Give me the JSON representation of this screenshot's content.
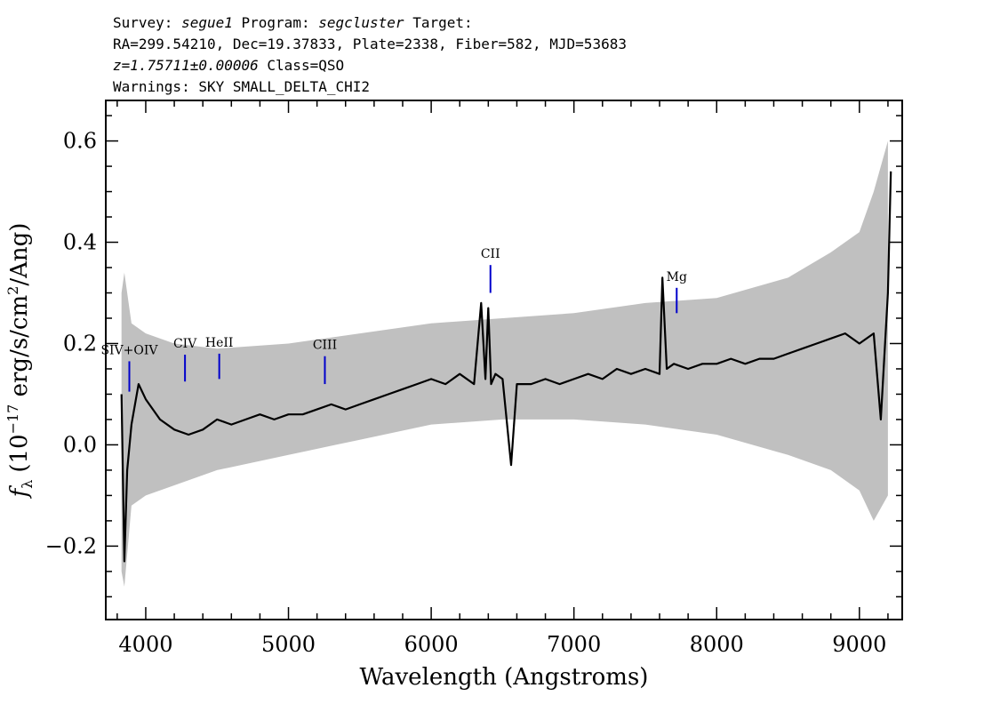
{
  "header": {
    "survey_label": "Survey:",
    "survey": "segue1",
    "program_label": "Program:",
    "program": "segcluster",
    "target_label": "Target:",
    "line2": "RA=299.54210, Dec=19.37833, Plate=2338, Fiber=582, MJD=53683",
    "redshift": "z=1.75711±0.00006",
    "class": "Class=QSO",
    "warnings": "Warnings: SKY SMALL_DELTA_CHI2"
  },
  "chart_data": {
    "type": "line",
    "title": "",
    "xlabel": "Wavelength (Angstroms)",
    "ylabel": "f_λ (10^-17 erg/s/cm^2/Ang)",
    "ylabel_parts": {
      "f": "f",
      "lambda": "λ",
      "open": "(10",
      "exp1": "−17",
      "mid": " erg/s/cm",
      "exp2": "2",
      "close": "/Ang)"
    },
    "xlim": [
      3720,
      9300
    ],
    "ylim": [
      -0.345,
      0.68
    ],
    "x_ticks": [
      4000,
      5000,
      6000,
      7000,
      8000,
      9000
    ],
    "x_tick_labels": [
      "4000",
      "5000",
      "6000",
      "7000",
      "8000",
      "9000"
    ],
    "y_ticks": [
      -0.2,
      0.0,
      0.2,
      0.4,
      0.6
    ],
    "y_tick_labels": [
      "−0.2",
      "0.0",
      "0.2",
      "0.4",
      "0.6"
    ],
    "grid": false,
    "series": [
      {
        "role": "error_band",
        "color": "#c0c0c0",
        "x": [
          3830,
          3850,
          3900,
          4000,
          4200,
          4500,
          5000,
          5500,
          6000,
          6500,
          7000,
          7500,
          8000,
          8500,
          8800,
          9000,
          9100,
          9200
        ],
        "low": [
          -0.25,
          -0.28,
          -0.12,
          -0.1,
          -0.08,
          -0.05,
          -0.02,
          0.01,
          0.04,
          0.05,
          0.05,
          0.04,
          0.02,
          -0.02,
          -0.05,
          -0.09,
          -0.15,
          -0.1
        ],
        "high": [
          0.3,
          0.34,
          0.24,
          0.22,
          0.2,
          0.19,
          0.2,
          0.22,
          0.24,
          0.25,
          0.26,
          0.28,
          0.29,
          0.33,
          0.38,
          0.42,
          0.5,
          0.6
        ]
      },
      {
        "role": "flux",
        "color": "#000000",
        "x": [
          3830,
          3850,
          3870,
          3900,
          3950,
          4000,
          4100,
          4200,
          4300,
          4400,
          4500,
          4600,
          4700,
          4800,
          4900,
          5000,
          5100,
          5200,
          5300,
          5400,
          5500,
          5600,
          5700,
          5800,
          5900,
          6000,
          6100,
          6200,
          6300,
          6350,
          6380,
          6400,
          6420,
          6450,
          6500,
          6560,
          6600,
          6700,
          6800,
          6900,
          7000,
          7100,
          7200,
          7300,
          7400,
          7500,
          7600,
          7620,
          7650,
          7700,
          7800,
          7900,
          8000,
          8100,
          8200,
          8300,
          8400,
          8500,
          8600,
          8700,
          8800,
          8900,
          9000,
          9100,
          9150,
          9200,
          9220
        ],
        "y": [
          0.1,
          -0.23,
          -0.05,
          0.04,
          0.12,
          0.09,
          0.05,
          0.03,
          0.02,
          0.03,
          0.05,
          0.04,
          0.05,
          0.06,
          0.05,
          0.06,
          0.06,
          0.07,
          0.08,
          0.07,
          0.08,
          0.09,
          0.1,
          0.11,
          0.12,
          0.13,
          0.12,
          0.14,
          0.12,
          0.28,
          0.13,
          0.27,
          0.12,
          0.14,
          0.13,
          -0.04,
          0.12,
          0.12,
          0.13,
          0.12,
          0.13,
          0.14,
          0.13,
          0.15,
          0.14,
          0.15,
          0.14,
          0.33,
          0.15,
          0.16,
          0.15,
          0.16,
          0.16,
          0.17,
          0.16,
          0.17,
          0.17,
          0.18,
          0.19,
          0.2,
          0.21,
          0.22,
          0.2,
          0.22,
          0.05,
          0.3,
          0.54
        ]
      }
    ],
    "line_markers": [
      {
        "label": "SIV+OIV",
        "x": 3885,
        "y0": 0.105,
        "y1": 0.165
      },
      {
        "label": "CIV",
        "x": 4275,
        "y0": 0.125,
        "y1": 0.178
      },
      {
        "label": "HeII",
        "x": 4515,
        "y0": 0.13,
        "y1": 0.18
      },
      {
        "label": "CIII",
        "x": 5255,
        "y0": 0.12,
        "y1": 0.175
      },
      {
        "label": "CII",
        "x": 6415,
        "y0": 0.3,
        "y1": 0.355
      },
      {
        "label": "Mg",
        "x": 7720,
        "y0": 0.26,
        "y1": 0.31
      }
    ],
    "marker_color": "#0000cc"
  }
}
